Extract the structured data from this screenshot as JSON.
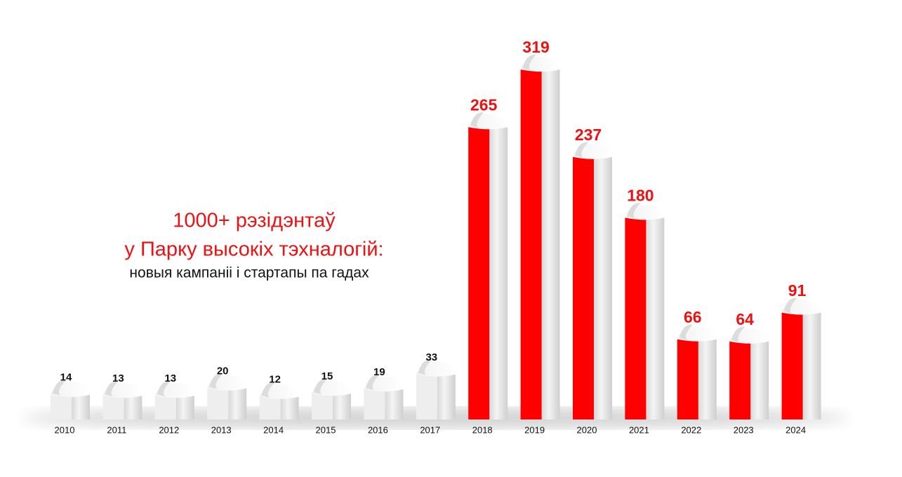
{
  "chart_data": {
    "type": "bar",
    "title": [
      "1000+ рэзідэнтаў",
      "у Парку высокіх тэхналогій:"
    ],
    "subtitle": "новыя кампаніі і стартапы па гадах",
    "categories": [
      "2010",
      "2011",
      "2012",
      "2013",
      "2014",
      "2015",
      "2016",
      "2017",
      "2018",
      "2019",
      "2020",
      "2021",
      "2022",
      "2023",
      "2024"
    ],
    "values": [
      14,
      13,
      13,
      20,
      12,
      15,
      19,
      33,
      265,
      319,
      237,
      180,
      66,
      64,
      91
    ],
    "colors": [
      "#eeeeee",
      "#eeeeee",
      "#eeeeee",
      "#eeeeee",
      "#eeeeee",
      "#eeeeee",
      "#eeeeee",
      "#eeeeee",
      "#ff0000",
      "#ff0000",
      "#ff0000",
      "#ff0000",
      "#ff0000",
      "#ff0000",
      "#ff0000"
    ],
    "label_colors": [
      "#111111",
      "#111111",
      "#111111",
      "#111111",
      "#111111",
      "#111111",
      "#111111",
      "#111111",
      "#ee1111",
      "#ee1111",
      "#ee1111",
      "#ee1111",
      "#ee1111",
      "#ee1111",
      "#ee1111"
    ]
  }
}
